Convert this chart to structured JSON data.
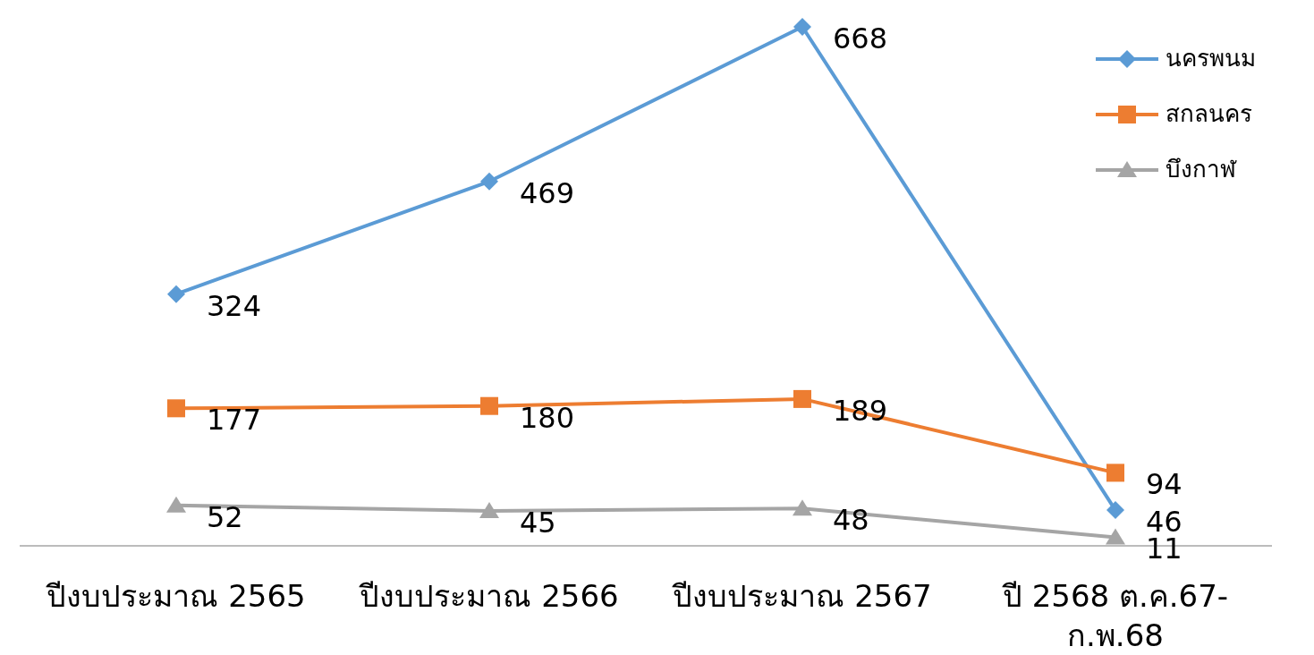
{
  "chart_data": {
    "type": "line",
    "categories": [
      "ปีงบประมาณ 2565",
      "ปีงบประมาณ 2566",
      "ปีงบประมาณ 2567",
      "ปี 2568 ต.ค.67-ก.พ.68"
    ],
    "series": [
      {
        "name": "นครพนม",
        "color": "#5b9bd5",
        "marker": "diamond",
        "values": [
          324,
          469,
          668,
          46
        ]
      },
      {
        "name": "สกลนคร",
        "color": "#ed7d31",
        "marker": "square",
        "values": [
          177,
          180,
          189,
          94
        ]
      },
      {
        "name": "บึงกาฬ",
        "color": "#a5a5a5",
        "marker": "triangle",
        "values": [
          52,
          45,
          48,
          11
        ]
      }
    ],
    "data_labels": true,
    "legend": "top right",
    "grid": false
  }
}
